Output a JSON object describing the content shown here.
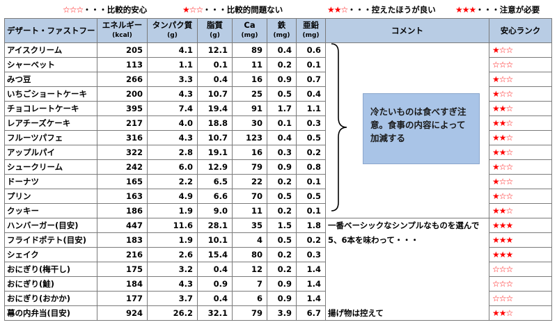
{
  "legend": [
    {
      "stars": [
        0,
        0,
        0
      ],
      "text": "・・・比較的安心"
    },
    {
      "stars": [
        1,
        0,
        0
      ],
      "text": "・・・比較的問題ない"
    },
    {
      "stars": [
        1,
        1,
        0
      ],
      "text": "・・・控えたほうが良い"
    },
    {
      "stars": [
        1,
        1,
        1
      ],
      "text": "・・・注意が必要"
    }
  ],
  "headers": {
    "name": "デザート・ファストフード",
    "energy": "エネルギー",
    "energy_unit": "(kcal)",
    "protein": "タンパク質",
    "protein_unit": "(g)",
    "fat": "脂質",
    "fat_unit": "(g)",
    "ca": "Ca",
    "ca_unit": "(mg)",
    "iron": "鉄",
    "iron_unit": "(mg)",
    "zinc": "亜鉛",
    "zinc_unit": "(mg)",
    "comment": "コメント",
    "rank": "安心ランク"
  },
  "rows": [
    {
      "name": "アイスクリーム",
      "energy": "205",
      "protein": "4.1",
      "fat": "12.1",
      "ca": "89",
      "iron": "0.4",
      "zinc": "0.6",
      "comment": "",
      "rank": [
        1,
        0,
        0
      ]
    },
    {
      "name": "シャーベット",
      "energy": "113",
      "protein": "1.1",
      "fat": "0.1",
      "ca": "11",
      "iron": "0.2",
      "zinc": "0.1",
      "comment": "",
      "rank": [
        0,
        0,
        0
      ]
    },
    {
      "name": "みつ豆",
      "energy": "266",
      "protein": "3.3",
      "fat": "0.4",
      "ca": "16",
      "iron": "0.9",
      "zinc": "0.7",
      "comment": "",
      "rank": [
        1,
        0,
        0
      ]
    },
    {
      "name": "いちごショートケーキ",
      "energy": "200",
      "protein": "4.3",
      "fat": "10.7",
      "ca": "25",
      "iron": "0.5",
      "zinc": "0.4",
      "comment": "",
      "rank": [
        1,
        0,
        0
      ]
    },
    {
      "name": "チョコレートケーキ",
      "energy": "395",
      "protein": "7.4",
      "fat": "19.4",
      "ca": "91",
      "iron": "1.7",
      "zinc": "1.1",
      "comment": "",
      "rank": [
        1,
        1,
        0
      ]
    },
    {
      "name": "レアチーズケーキ",
      "energy": "217",
      "protein": "4.0",
      "fat": "18.8",
      "ca": "30",
      "iron": "0.1",
      "zinc": "0.3",
      "comment": "",
      "rank": [
        1,
        1,
        0
      ]
    },
    {
      "name": "フルーツパフェ",
      "energy": "316",
      "protein": "4.3",
      "fat": "10.7",
      "ca": "123",
      "iron": "0.4",
      "zinc": "0.5",
      "comment": "",
      "rank": [
        1,
        1,
        0
      ]
    },
    {
      "name": "アップルパイ",
      "energy": "322",
      "protein": "2.8",
      "fat": "19.1",
      "ca": "16",
      "iron": "0.3",
      "zinc": "0.2",
      "comment": "",
      "rank": [
        1,
        1,
        0
      ]
    },
    {
      "name": "シュークリーム",
      "energy": "242",
      "protein": "6.0",
      "fat": "12.9",
      "ca": "79",
      "iron": "0.9",
      "zinc": "0.8",
      "comment": "",
      "rank": [
        1,
        0,
        0
      ]
    },
    {
      "name": "ドーナツ",
      "energy": "165",
      "protein": "2.2",
      "fat": "6.5",
      "ca": "22",
      "iron": "0.2",
      "zinc": "0.1",
      "comment": "",
      "rank": [
        1,
        0,
        0
      ]
    },
    {
      "name": "プリン",
      "energy": "163",
      "protein": "4.9",
      "fat": "6.6",
      "ca": "70",
      "iron": "0.5",
      "zinc": "0.5",
      "comment": "",
      "rank": [
        1,
        0,
        0
      ]
    },
    {
      "name": "クッキー",
      "energy": "186",
      "protein": "1.9",
      "fat": "9.0",
      "ca": "11",
      "iron": "0.2",
      "zinc": "0.1",
      "comment": "",
      "rank": [
        1,
        1,
        0
      ]
    },
    {
      "name": "ハンバーガー(目安)",
      "energy": "447",
      "protein": "11.6",
      "fat": "28.1",
      "ca": "35",
      "iron": "1.5",
      "zinc": "1.8",
      "comment": "一番ベーシックなシンプルなものを選んで",
      "rank": [
        1,
        1,
        1
      ]
    },
    {
      "name": "フライドポテト(目安)",
      "energy": "183",
      "protein": "1.9",
      "fat": "10.1",
      "ca": "4",
      "iron": "0.5",
      "zinc": "0.2",
      "comment": "5、6本を味わって・・・",
      "rank": [
        1,
        1,
        1
      ]
    },
    {
      "name": "シェイク",
      "energy": "216",
      "protein": "2.6",
      "fat": "15.4",
      "ca": "80",
      "iron": "0.2",
      "zinc": "0.3",
      "comment": "",
      "rank": [
        1,
        1,
        1
      ]
    },
    {
      "name": "おにぎり(梅干し)",
      "energy": "175",
      "protein": "3.2",
      "fat": "0.4",
      "ca": "12",
      "iron": "0.2",
      "zinc": "1.4",
      "comment": "",
      "rank": [
        0,
        0,
        0
      ]
    },
    {
      "name": "おにぎり(鮭)",
      "energy": "184",
      "protein": "4.3",
      "fat": "0.9",
      "ca": "7",
      "iron": "0.9",
      "zinc": "1.4",
      "comment": "",
      "rank": [
        0,
        0,
        0
      ]
    },
    {
      "name": "おにぎり(おかか)",
      "energy": "177",
      "protein": "3.7",
      "fat": "0.4",
      "ca": "6",
      "iron": "0.9",
      "zinc": "1.4",
      "comment": "",
      "rank": [
        0,
        0,
        0
      ]
    },
    {
      "name": "幕の内弁当(目安)",
      "energy": "924",
      "protein": "26.2",
      "fat": "32.1",
      "ca": "79",
      "iron": "3.9",
      "zinc": "6.7",
      "comment": "揚げ物は控えて",
      "rank": [
        1,
        1,
        0
      ]
    }
  ],
  "note": "冷たいものは食べすぎ注意。食事の内容によって加減する",
  "colors": {
    "header_bg": "#b8cce4",
    "note_bg": "#a9c4e7",
    "star": "#ff0000",
    "border": "#7a7a7a"
  }
}
